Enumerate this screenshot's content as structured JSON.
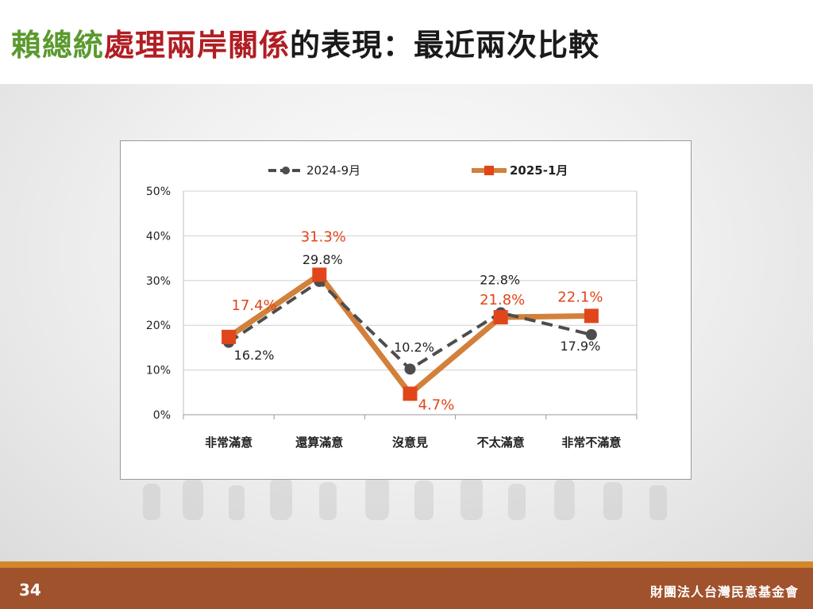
{
  "slide": {
    "title_parts": [
      "賴總統",
      "處理兩岸關係",
      "的表現：最近兩次比較"
    ],
    "page_number": "34",
    "organization": "財團法人台灣民意基金會"
  },
  "colors": {
    "title_green": "#5a9a2e",
    "title_red": "#b01e23",
    "series_2024": "#4d4d4d",
    "series_2025_line": "#d2803a",
    "series_2025_marker": "#e0461a",
    "label_2025": "#e0461a",
    "footer": "#a0522d",
    "footer_accent": "#d2872a"
  },
  "chart_data": {
    "type": "line",
    "categories": [
      "非常滿意",
      "還算滿意",
      "沒意見",
      "不太滿意",
      "非常不滿意"
    ],
    "ylim": [
      0,
      50
    ],
    "yticks": [
      "0%",
      "10%",
      "20%",
      "30%",
      "40%",
      "50%"
    ],
    "grid": "horizontal",
    "legend_position": "top",
    "series": [
      {
        "name": "2024-9月",
        "values": [
          16.2,
          29.8,
          10.2,
          22.8,
          17.9
        ],
        "labels": [
          "16.2%",
          "29.8%",
          "10.2%",
          "22.8%",
          "17.9%"
        ],
        "style": "dashed",
        "marker": "circle"
      },
      {
        "name": "2025-1月",
        "values": [
          17.4,
          31.3,
          4.7,
          21.8,
          22.1
        ],
        "labels": [
          "17.4%",
          "31.3%",
          "4.7%",
          "21.8%",
          "22.1%"
        ],
        "style": "solid",
        "marker": "square"
      }
    ]
  }
}
